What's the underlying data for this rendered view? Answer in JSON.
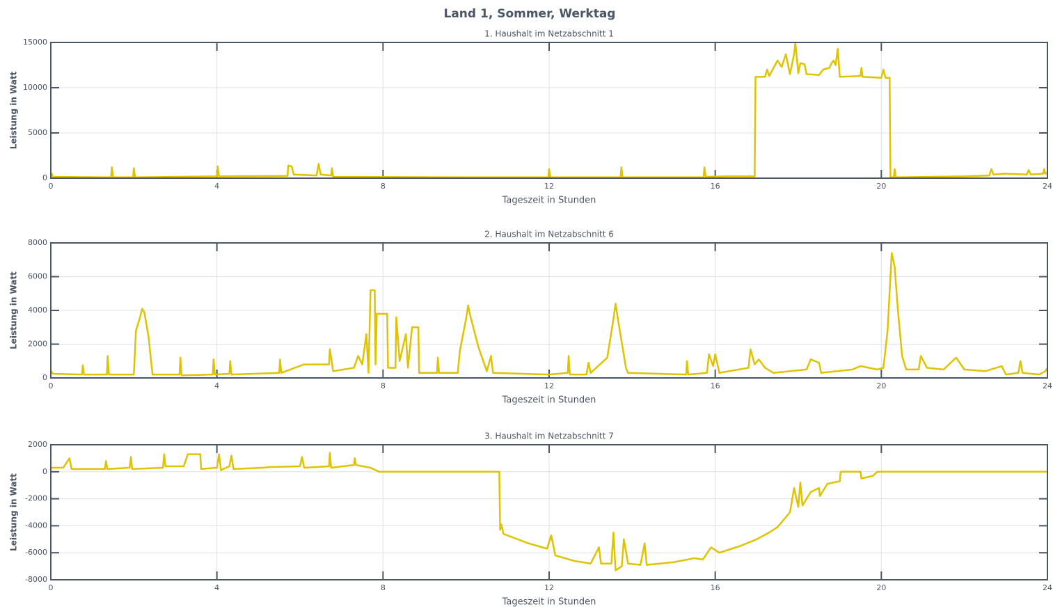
{
  "title": "Land 1, Sommer, Werktag",
  "chart_data": [
    {
      "type": "line",
      "title": "1. Haushalt im Netzabschnitt 1",
      "x_label": "Tageszeit in Stunden",
      "y_label": "Leistung in Watt",
      "xlim": [
        0,
        24
      ],
      "xticks": [
        0,
        4,
        8,
        12,
        16,
        20,
        24
      ],
      "ylim": [
        0,
        15000
      ],
      "yticks": [
        0,
        5000,
        10000,
        15000
      ],
      "grid": true,
      "color": "#dfc300",
      "x": [
        0,
        0.02,
        0.05,
        1.45,
        1.47,
        1.5,
        1.98,
        2,
        2.03,
        4,
        4.02,
        4.05,
        5.7,
        5.72,
        5.8,
        5.85,
        6.4,
        6.45,
        6.5,
        6.75,
        6.77,
        6.8,
        10,
        11.98,
        12,
        12.03,
        13.72,
        13.74,
        13.77,
        15.72,
        15.74,
        15.77,
        16.3,
        16.95,
        16.97,
        17.2,
        17.25,
        17.3,
        17.5,
        17.6,
        17.7,
        17.8,
        17.9,
        17.93,
        18,
        18.05,
        18.15,
        18.2,
        18.5,
        18.6,
        18.75,
        18.8,
        18.85,
        18.9,
        18.95,
        19,
        19.5,
        19.52,
        19.55,
        20,
        20.05,
        20.1,
        20.2,
        20.22,
        20.3,
        20.32,
        20.35,
        22,
        22.6,
        22.65,
        22.7,
        23,
        23.5,
        23.55,
        23.6,
        23.9,
        23.92,
        23.95,
        24
      ],
      "values": [
        100,
        500,
        150,
        100,
        1200,
        100,
        100,
        1100,
        100,
        200,
        1300,
        200,
        250,
        1400,
        1300,
        400,
        300,
        1600,
        400,
        300,
        1100,
        150,
        100,
        100,
        1000,
        100,
        100,
        1200,
        100,
        100,
        1200,
        150,
        200,
        200,
        11200,
        11200,
        12000,
        11300,
        13000,
        12300,
        13700,
        11500,
        13700,
        15000,
        11600,
        12700,
        12600,
        11500,
        11400,
        12000,
        12200,
        12700,
        13000,
        12500,
        14300,
        11200,
        11300,
        12200,
        11200,
        11100,
        12000,
        11100,
        11100,
        100,
        100,
        1000,
        100,
        200,
        300,
        1000,
        400,
        500,
        400,
        900,
        400,
        500,
        1000,
        500,
        600
      ]
    },
    {
      "type": "line",
      "title": "2. Haushalt im Netzabschnitt 6",
      "x_label": "Tageszeit in Stunden",
      "y_label": "Leistung in Watt",
      "xlim": [
        0,
        24
      ],
      "xticks": [
        0,
        4,
        8,
        12,
        16,
        20,
        24
      ],
      "ylim": [
        0,
        8000
      ],
      "yticks": [
        0,
        2000,
        4000,
        6000,
        8000
      ],
      "grid": true,
      "color": "#dfc300",
      "x": [
        0,
        0.05,
        0.75,
        0.77,
        0.8,
        1.35,
        1.37,
        1.4,
        2,
        2.05,
        2.15,
        2.2,
        2.25,
        2.35,
        2.45,
        3.1,
        3.12,
        3.15,
        3.9,
        3.92,
        3.95,
        4.3,
        4.32,
        4.35,
        5.5,
        5.52,
        5.55,
        6.1,
        6.7,
        6.72,
        6.8,
        7.3,
        7.4,
        7.5,
        7.6,
        7.65,
        7.7,
        7.8,
        7.82,
        7.85,
        8.1,
        8.12,
        8.3,
        8.32,
        8.4,
        8.55,
        8.6,
        8.7,
        8.85,
        8.87,
        9,
        9.3,
        9.32,
        9.35,
        9.8,
        9.85,
        10,
        10.05,
        10.1,
        10.3,
        10.5,
        10.6,
        10.65,
        12,
        12.45,
        12.47,
        12.5,
        12.9,
        12.95,
        13,
        13.4,
        13.55,
        13.6,
        13.65,
        13.85,
        13.9,
        15.3,
        15.32,
        15.35,
        15.8,
        15.85,
        15.95,
        16,
        16.1,
        16.8,
        16.85,
        16.95,
        17.05,
        17.2,
        17.4,
        18.2,
        18.3,
        18.5,
        18.55,
        19.3,
        19.5,
        19.9,
        20.05,
        20.15,
        20.25,
        20.32,
        20.4,
        20.5,
        20.6,
        20.9,
        20.95,
        21.1,
        21.5,
        21.8,
        22,
        22.5,
        22.9,
        23,
        23.3,
        23.35,
        23.4,
        23.8,
        23.95,
        24
      ],
      "values": [
        400,
        250,
        200,
        750,
        200,
        200,
        1300,
        200,
        200,
        2800,
        3600,
        4100,
        3900,
        2500,
        200,
        200,
        1200,
        150,
        200,
        1100,
        200,
        250,
        1000,
        200,
        300,
        1100,
        300,
        800,
        800,
        1700,
        400,
        600,
        1300,
        800,
        2600,
        300,
        5200,
        5200,
        800,
        3800,
        3800,
        600,
        600,
        3600,
        1000,
        2600,
        600,
        3000,
        3000,
        300,
        300,
        300,
        1200,
        300,
        300,
        1600,
        3500,
        4300,
        3700,
        1800,
        400,
        1300,
        300,
        200,
        300,
        1300,
        200,
        200,
        900,
        300,
        1200,
        3500,
        4400,
        3600,
        600,
        300,
        200,
        1000,
        200,
        300,
        1400,
        700,
        1400,
        300,
        600,
        1700,
        800,
        1100,
        600,
        300,
        500,
        1100,
        900,
        300,
        500,
        700,
        500,
        600,
        2800,
        7400,
        6600,
        4000,
        1300,
        500,
        500,
        1300,
        600,
        500,
        1200,
        500,
        400,
        700,
        200,
        300,
        1000,
        300,
        200,
        400,
        600
      ]
    },
    {
      "type": "line",
      "title": "3. Haushalt im Netzabschnitt 7",
      "x_label": "Tageszeit in Stunden",
      "y_label": "Leistung in Watt",
      "xlim": [
        0,
        24
      ],
      "xticks": [
        0,
        4,
        8,
        12,
        16,
        20,
        24
      ],
      "ylim": [
        -8000,
        2000
      ],
      "yticks": [
        -8000,
        -6000,
        -4000,
        -2000,
        0,
        2000
      ],
      "grid": true,
      "color": "#dfc300",
      "x": [
        0,
        0.3,
        0.45,
        0.5,
        1.3,
        1.33,
        1.36,
        1.9,
        1.93,
        1.96,
        2.7,
        2.73,
        2.76,
        3.2,
        3.3,
        3.6,
        3.62,
        4,
        4.05,
        4.1,
        4.15,
        4.3,
        4.35,
        4.4,
        5.1,
        5.3,
        6,
        6.05,
        6.1,
        6.7,
        6.72,
        6.75,
        7.3,
        7.32,
        7.35,
        7.7,
        7.9,
        10.8,
        10.82,
        10.85,
        10.9,
        11.5,
        11.95,
        12.05,
        12.15,
        12.6,
        13,
        13.2,
        13.25,
        13.5,
        13.55,
        13.6,
        13.75,
        13.8,
        13.9,
        14.2,
        14.3,
        14.35,
        15,
        15.5,
        15.7,
        15.9,
        16.1,
        16.6,
        17,
        17.3,
        17.5,
        17.8,
        17.9,
        18,
        18.05,
        18.1,
        18.3,
        18.5,
        18.52,
        18.7,
        19,
        19.02,
        19.5,
        19.52,
        19.8,
        19.9,
        24
      ],
      "values": [
        300,
        300,
        1000,
        200,
        200,
        800,
        200,
        300,
        1100,
        200,
        300,
        1300,
        400,
        400,
        1300,
        1300,
        200,
        300,
        1300,
        100,
        200,
        400,
        1200,
        200,
        300,
        350,
        400,
        1100,
        300,
        400,
        1400,
        300,
        500,
        1000,
        500,
        300,
        0,
        0,
        -4300,
        -3900,
        -4600,
        -5300,
        -5700,
        -4700,
        -6200,
        -6600,
        -6800,
        -5600,
        -6800,
        -6800,
        -4500,
        -7300,
        -7000,
        -5000,
        -6800,
        -6900,
        -5300,
        -6900,
        -6700,
        -6400,
        -6500,
        -5600,
        -6000,
        -5500,
        -5000,
        -4500,
        -4100,
        -3000,
        -1200,
        -2600,
        -800,
        -2500,
        -1500,
        -1200,
        -1800,
        -900,
        -700,
        0,
        0,
        -500,
        -300,
        0,
        0
      ]
    }
  ]
}
